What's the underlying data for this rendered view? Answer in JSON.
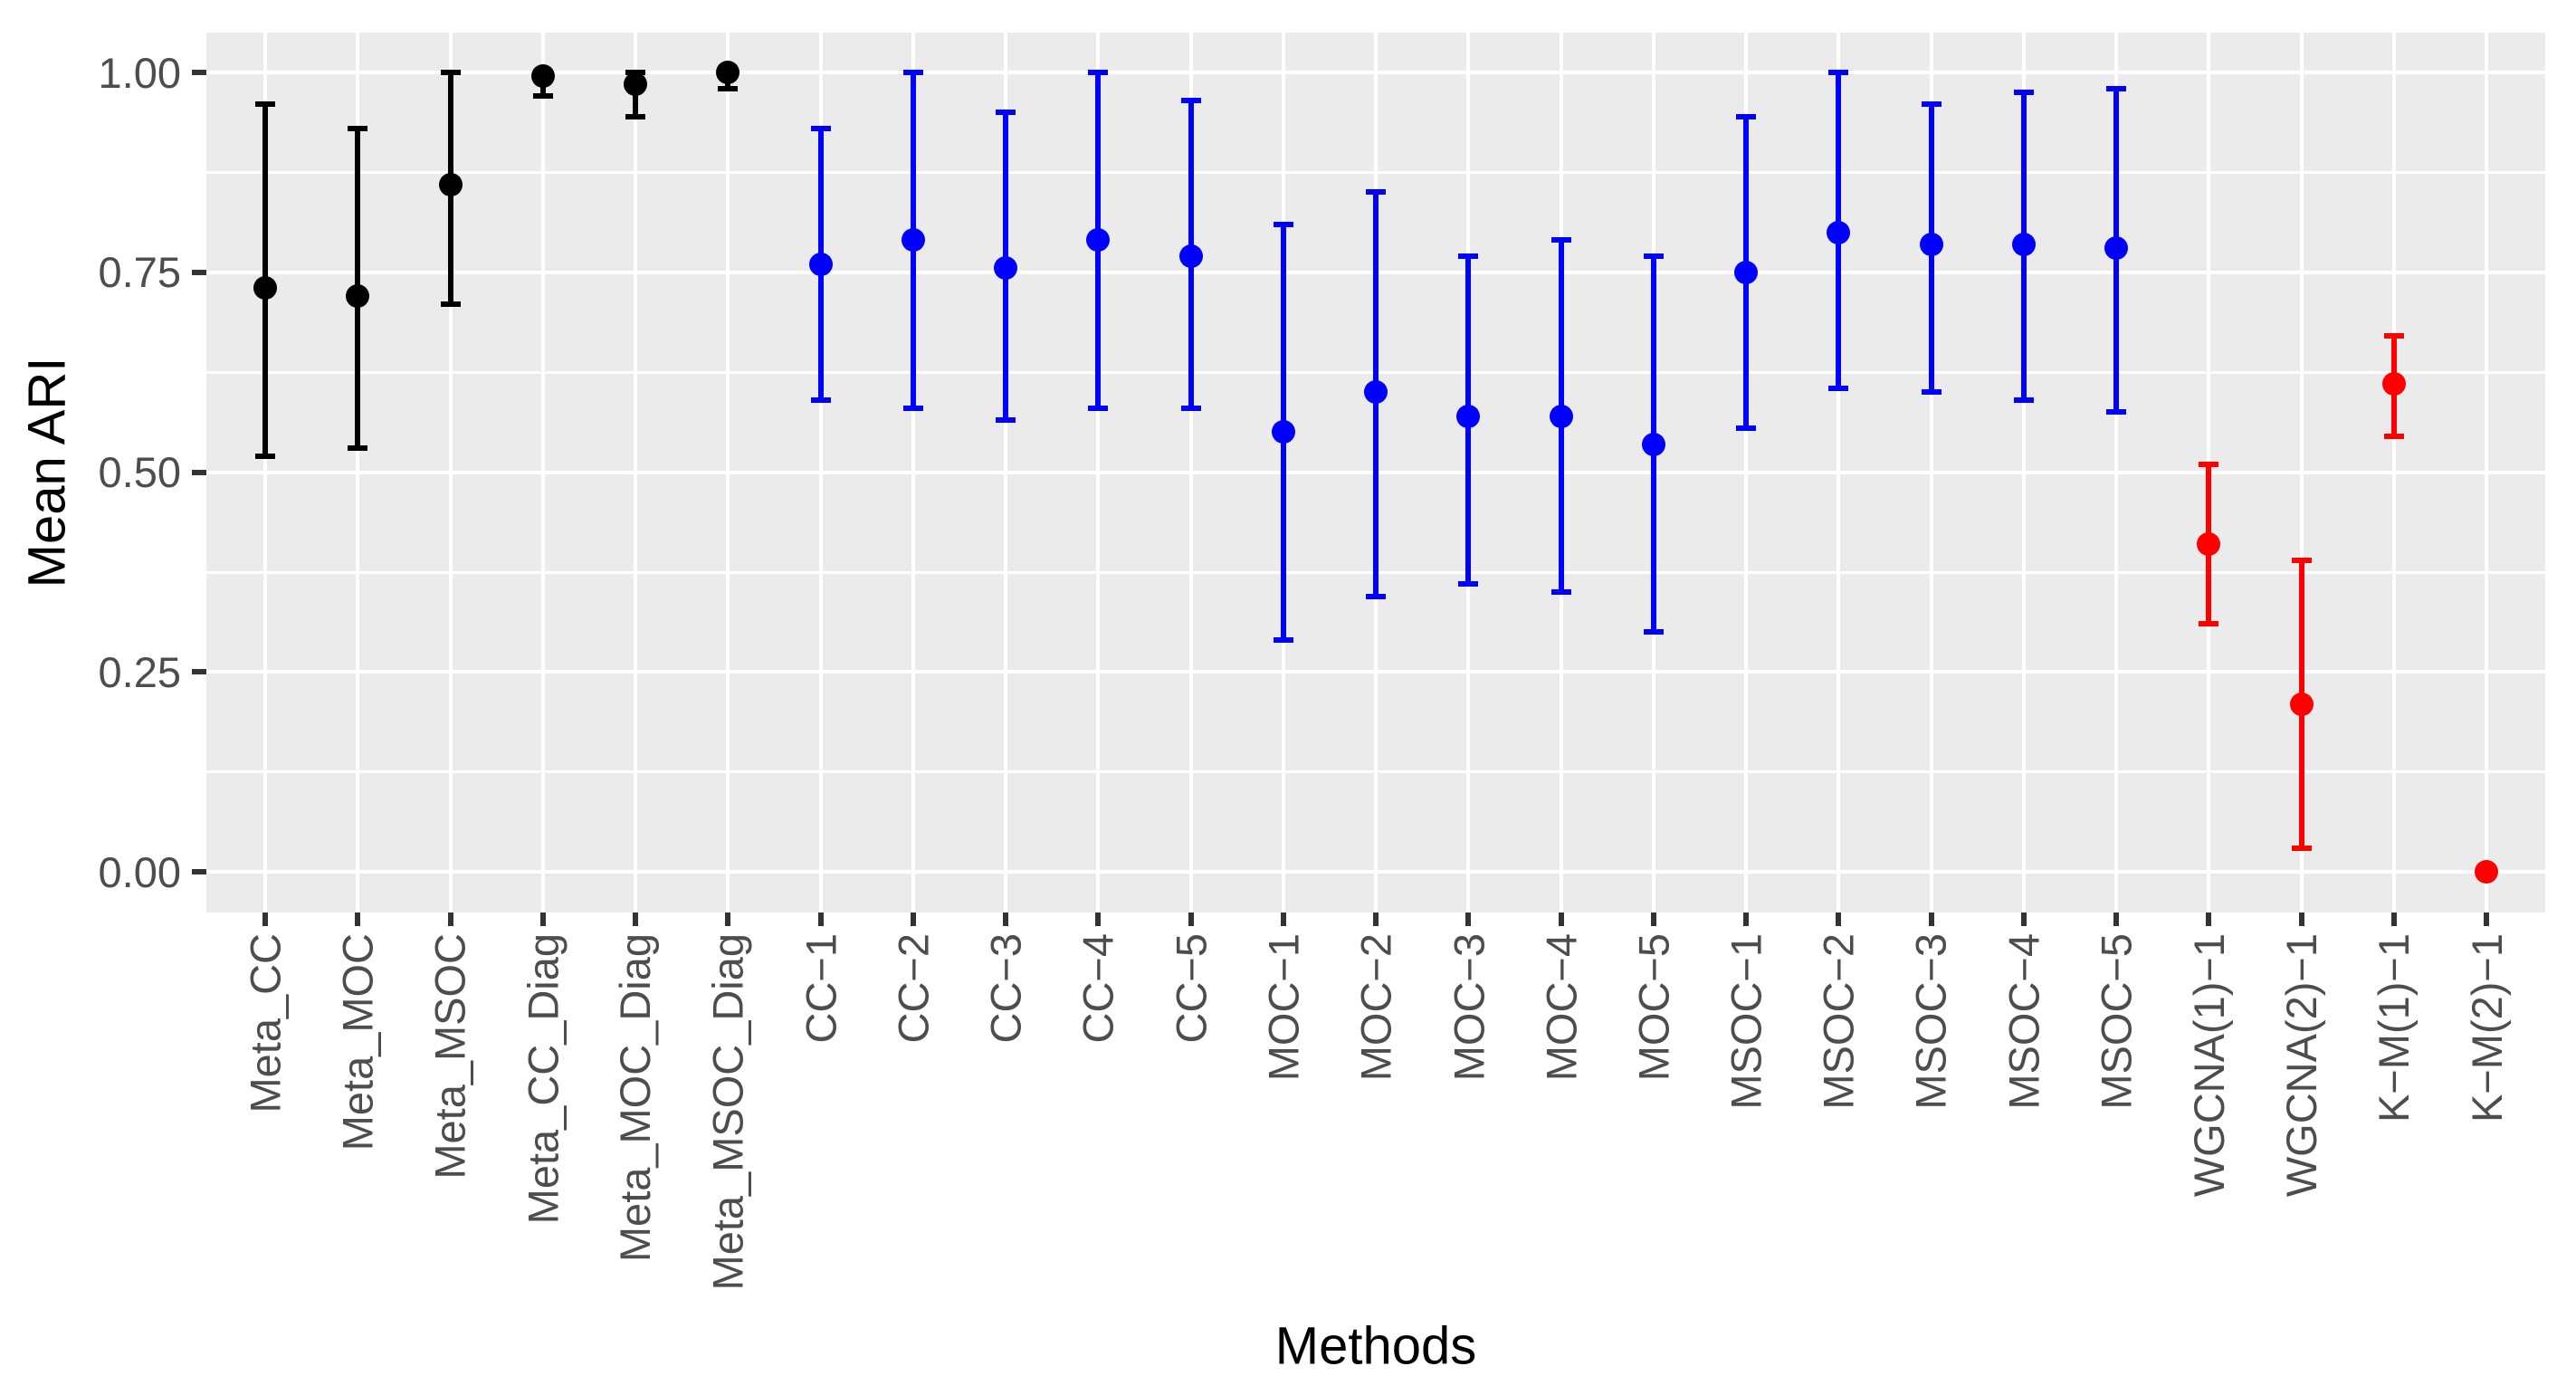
{
  "chart_data": {
    "type": "pointrange",
    "title": "",
    "xlabel": "Methods",
    "ylabel": "Mean ARI",
    "ylim": [
      0,
      1
    ],
    "grid": "major and minor horizontal white gridlines, vertical major gridline at each category, grey panel",
    "legend_position": "none",
    "y_ticks": [
      {
        "value": 0.0,
        "label": "0.00"
      },
      {
        "value": 0.25,
        "label": "0.25"
      },
      {
        "value": 0.5,
        "label": "0.50"
      },
      {
        "value": 0.75,
        "label": "0.75"
      },
      {
        "value": 1.0,
        "label": "1.00"
      }
    ],
    "y_minor_ticks": [
      0.125,
      0.375,
      0.625,
      0.875
    ],
    "categories": [
      "Meta_CC",
      "Meta_MOC",
      "Meta_MSOC",
      "Meta_CC_Diag",
      "Meta_MOC_Diag",
      "Meta_MSOC_Diag",
      "CC−1",
      "CC−2",
      "CC−3",
      "CC−4",
      "CC−5",
      "MOC−1",
      "MOC−2",
      "MOC−3",
      "MOC−4",
      "MOC−5",
      "MSOC−1",
      "MSOC−2",
      "MSOC−3",
      "MSOC−4",
      "MSOC−5",
      "WGCNA(1)−1",
      "WGCNA(2)−1",
      "K−M(1)−1",
      "K−M(2)−1"
    ],
    "points": [
      {
        "label": "Meta_CC",
        "mean": 0.73,
        "lo": 0.52,
        "hi": 0.96,
        "group": "black"
      },
      {
        "label": "Meta_MOC",
        "mean": 0.72,
        "lo": 0.53,
        "hi": 0.93,
        "group": "black"
      },
      {
        "label": "Meta_MSOC",
        "mean": 0.86,
        "lo": 0.71,
        "hi": 1.0,
        "group": "black"
      },
      {
        "label": "Meta_CC_Diag",
        "mean": 0.995,
        "lo": 0.97,
        "hi": 1.0,
        "group": "black"
      },
      {
        "label": "Meta_MOC_Diag",
        "mean": 0.985,
        "lo": 0.945,
        "hi": 1.0,
        "group": "black"
      },
      {
        "label": "Meta_MSOC_Diag",
        "mean": 1.0,
        "lo": 0.98,
        "hi": 1.0,
        "group": "black"
      },
      {
        "label": "CC−1",
        "mean": 0.76,
        "lo": 0.59,
        "hi": 0.93,
        "group": "blue"
      },
      {
        "label": "CC−2",
        "mean": 0.79,
        "lo": 0.58,
        "hi": 1.0,
        "group": "blue"
      },
      {
        "label": "CC−3",
        "mean": 0.755,
        "lo": 0.565,
        "hi": 0.95,
        "group": "blue"
      },
      {
        "label": "CC−4",
        "mean": 0.79,
        "lo": 0.58,
        "hi": 1.0,
        "group": "blue"
      },
      {
        "label": "CC−5",
        "mean": 0.77,
        "lo": 0.58,
        "hi": 0.965,
        "group": "blue"
      },
      {
        "label": "MOC−1",
        "mean": 0.55,
        "lo": 0.29,
        "hi": 0.81,
        "group": "blue"
      },
      {
        "label": "MOC−2",
        "mean": 0.6,
        "lo": 0.345,
        "hi": 0.85,
        "group": "blue"
      },
      {
        "label": "MOC−3",
        "mean": 0.57,
        "lo": 0.36,
        "hi": 0.77,
        "group": "blue"
      },
      {
        "label": "MOC−4",
        "mean": 0.57,
        "lo": 0.35,
        "hi": 0.79,
        "group": "blue"
      },
      {
        "label": "MOC−5",
        "mean": 0.535,
        "lo": 0.3,
        "hi": 0.77,
        "group": "blue"
      },
      {
        "label": "MSOC−1",
        "mean": 0.75,
        "lo": 0.555,
        "hi": 0.945,
        "group": "blue"
      },
      {
        "label": "MSOC−2",
        "mean": 0.8,
        "lo": 0.605,
        "hi": 1.0,
        "group": "blue"
      },
      {
        "label": "MSOC−3",
        "mean": 0.785,
        "lo": 0.6,
        "hi": 0.96,
        "group": "blue"
      },
      {
        "label": "MSOC−4",
        "mean": 0.785,
        "lo": 0.59,
        "hi": 0.975,
        "group": "blue"
      },
      {
        "label": "MSOC−5",
        "mean": 0.78,
        "lo": 0.575,
        "hi": 0.98,
        "group": "blue"
      },
      {
        "label": "WGCNA(1)−1",
        "mean": 0.41,
        "lo": 0.31,
        "hi": 0.51,
        "group": "red"
      },
      {
        "label": "WGCNA(2)−1",
        "mean": 0.21,
        "lo": 0.03,
        "hi": 0.39,
        "group": "red"
      },
      {
        "label": "K−M(1)−1",
        "mean": 0.61,
        "lo": 0.545,
        "hi": 0.67,
        "group": "red"
      },
      {
        "label": "K−M(2)−1",
        "mean": 0.0,
        "lo": 0.0,
        "hi": 0.0,
        "group": "red"
      }
    ],
    "series_colors": {
      "black": "#000000",
      "blue": "#0000FF",
      "red": "#FF0000"
    },
    "style": {
      "panel_background": "#EBEBEB",
      "gridline_color": "#FFFFFF",
      "tick_color": "#333333",
      "tick_label_color": "#4D4D4D",
      "axis_title_color": "#000000"
    }
  }
}
